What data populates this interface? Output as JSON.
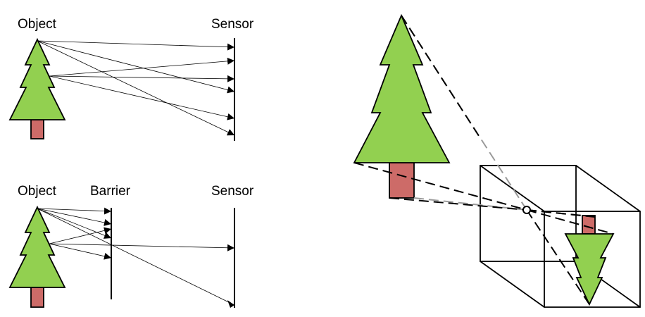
{
  "labels": {
    "top_object": "Object",
    "top_sensor": "Sensor",
    "bottom_object": "Object",
    "bottom_barrier": "Barrier",
    "bottom_sensor": "Sensor"
  },
  "colors": {
    "foliage": "#92d050",
    "trunk": "#cd6b68",
    "line": "#000000",
    "dash_grey": "#9a9a9a",
    "background": "#ffffff"
  }
}
